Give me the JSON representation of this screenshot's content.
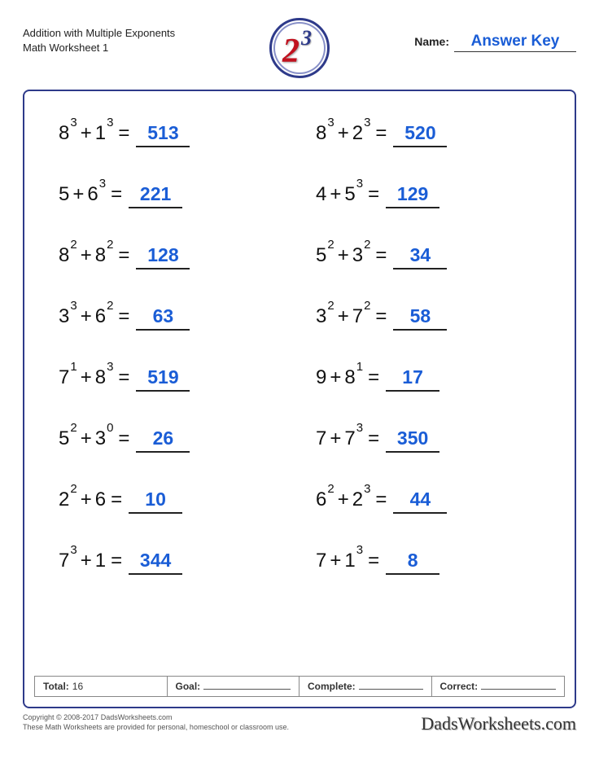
{
  "header": {
    "title_line1": "Addition with Multiple Exponents",
    "title_line2": "Math Worksheet 1",
    "name_label": "Name:",
    "answer_key": "Answer Key",
    "logo_base": "2",
    "logo_exp": "3"
  },
  "colors": {
    "answer": "#1a5dd6",
    "frame_border": "#2e3a8a",
    "logo_red": "#c1121f",
    "logo_blue": "#2e3a8a",
    "text": "#111111",
    "underline": "#222222"
  },
  "typography": {
    "problem_fontsize": 24,
    "exponent_fontsize": 15,
    "answer_fontsize": 23,
    "title_fontsize": 13
  },
  "problems": [
    {
      "t1b": "8",
      "t1e": "3",
      "op": "+",
      "t2b": "1",
      "t2e": "3",
      "ans": "513"
    },
    {
      "t1b": "8",
      "t1e": "3",
      "op": "+",
      "t2b": "2",
      "t2e": "3",
      "ans": "520"
    },
    {
      "t1b": "5",
      "t1e": "",
      "op": "+",
      "t2b": "6",
      "t2e": "3",
      "ans": "221"
    },
    {
      "t1b": "4",
      "t1e": "",
      "op": "+",
      "t2b": "5",
      "t2e": "3",
      "ans": "129"
    },
    {
      "t1b": "8",
      "t1e": "2",
      "op": "+",
      "t2b": "8",
      "t2e": "2",
      "ans": "128"
    },
    {
      "t1b": "5",
      "t1e": "2",
      "op": "+",
      "t2b": "3",
      "t2e": "2",
      "ans": "34"
    },
    {
      "t1b": "3",
      "t1e": "3",
      "op": "+",
      "t2b": "6",
      "t2e": "2",
      "ans": "63"
    },
    {
      "t1b": "3",
      "t1e": "2",
      "op": "+",
      "t2b": "7",
      "t2e": "2",
      "ans": "58"
    },
    {
      "t1b": "7",
      "t1e": "1",
      "op": "+",
      "t2b": "8",
      "t2e": "3",
      "ans": "519"
    },
    {
      "t1b": "9",
      "t1e": "",
      "op": "+",
      "t2b": "8",
      "t2e": "1",
      "ans": "17"
    },
    {
      "t1b": "5",
      "t1e": "2",
      "op": "+",
      "t2b": "3",
      "t2e": "0",
      "ans": "26"
    },
    {
      "t1b": "7",
      "t1e": "",
      "op": "+",
      "t2b": "7",
      "t2e": "3",
      "ans": "350"
    },
    {
      "t1b": "2",
      "t1e": "2",
      "op": "+",
      "t2b": "6",
      "t2e": "",
      "ans": "10"
    },
    {
      "t1b": "6",
      "t1e": "2",
      "op": "+",
      "t2b": "2",
      "t2e": "3",
      "ans": "44"
    },
    {
      "t1b": "7",
      "t1e": "3",
      "op": "+",
      "t2b": "1",
      "t2e": "",
      "ans": "344"
    },
    {
      "t1b": "7",
      "t1e": "",
      "op": "+",
      "t2b": "1",
      "t2e": "3",
      "ans": "8"
    }
  ],
  "footer": {
    "total_label": "Total:",
    "total_value": "16",
    "goal_label": "Goal:",
    "complete_label": "Complete:",
    "correct_label": "Correct:"
  },
  "copyright": {
    "line1": "Copyright © 2008-2017 DadsWorksheets.com",
    "line2": "These Math Worksheets are provided for personal, homeschool or classroom use.",
    "brand": "DadsWorksheets.com"
  }
}
